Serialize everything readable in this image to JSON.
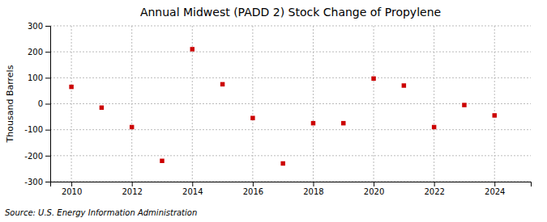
{
  "chart_data": {
    "type": "scatter",
    "title": "Annual Midwest (PADD 2) Stock Change of Propylene",
    "ylabel": "Thousand Barrels",
    "source": "Source: U.S. Energy Information Administration",
    "x": [
      2010,
      2011,
      2012,
      2013,
      2014,
      2015,
      2016,
      2017,
      2018,
      2019,
      2020,
      2021,
      2022,
      2023,
      2024
    ],
    "values": [
      65,
      -15,
      -90,
      -220,
      210,
      75,
      -55,
      -230,
      -75,
      -75,
      97,
      70,
      -90,
      -5,
      -45
    ],
    "color": "#cc0000",
    "marker": "square",
    "xlim": [
      2009.3,
      2025.2
    ],
    "ylim": [
      -300,
      300
    ],
    "xticks": [
      2010,
      2012,
      2014,
      2016,
      2018,
      2020,
      2022,
      2024
    ],
    "yticks": [
      -300,
      -200,
      -100,
      0,
      100,
      200,
      300
    ],
    "grid": true
  }
}
